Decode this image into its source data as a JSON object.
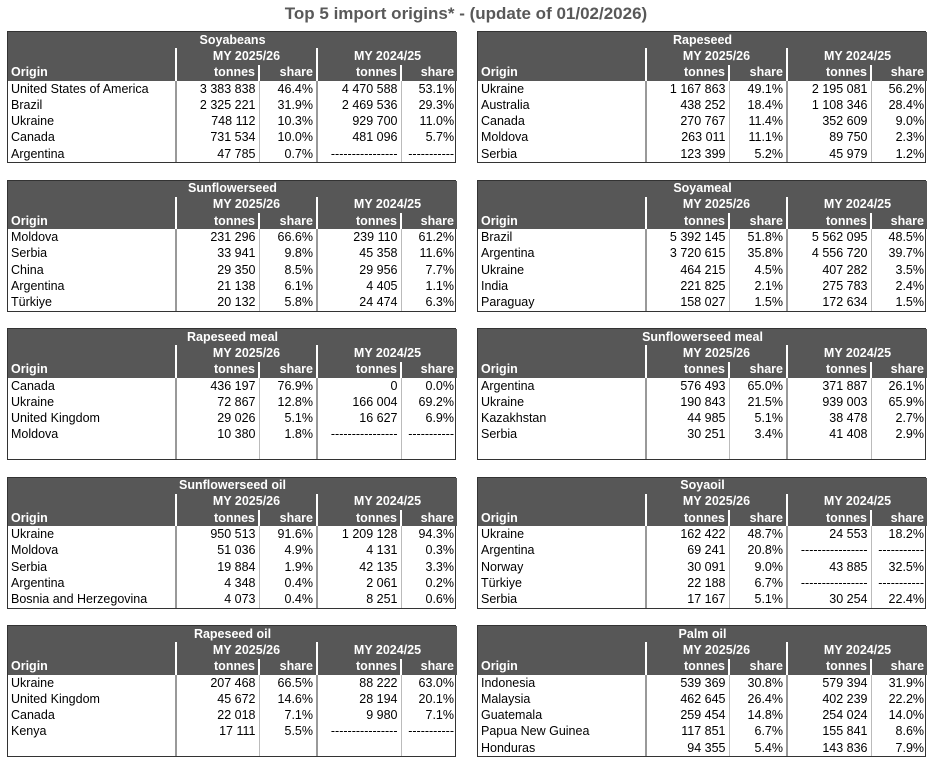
{
  "title": "Top 5 import origins* - (update of 01/02/2026)",
  "tables": [
    {
      "title": "Soyabeans",
      "periods": [
        "MY 2025/26",
        "MY 2024/25"
      ],
      "columns": [
        "Origin",
        "tonnes",
        "share",
        "tonnes",
        "share"
      ],
      "rows": [
        [
          "United States of America",
          "3 383 838",
          "46.4%",
          "4 470 588",
          "53.1%"
        ],
        [
          "Brazil",
          "2 325 221",
          "31.9%",
          "2 469 536",
          "29.3%"
        ],
        [
          "Ukraine",
          "748 112",
          "10.3%",
          "929 700",
          "11.0%"
        ],
        [
          "Canada",
          "731 534",
          "10.0%",
          "481 096",
          "5.7%"
        ],
        [
          "Argentina",
          "47 785",
          "0.7%",
          "----------------",
          "-----------"
        ]
      ]
    },
    {
      "title": "Rapeseed",
      "periods": [
        "MY 2025/26",
        "MY 2024/25"
      ],
      "columns": [
        "Origin",
        "tonnes",
        "share",
        "tonnes",
        "share"
      ],
      "rows": [
        [
          "Ukraine",
          "1 167 863",
          "49.1%",
          "2 195 081",
          "56.2%"
        ],
        [
          "Australia",
          "438 252",
          "18.4%",
          "1 108 346",
          "28.4%"
        ],
        [
          "Canada",
          "270 767",
          "11.4%",
          "352 609",
          "9.0%"
        ],
        [
          "Moldova",
          "263 011",
          "11.1%",
          "89 750",
          "2.3%"
        ],
        [
          "Serbia",
          "123 399",
          "5.2%",
          "45 979",
          "1.2%"
        ]
      ]
    },
    {
      "title": "Sunflowerseed",
      "periods": [
        "MY 2025/26",
        "MY 2024/25"
      ],
      "columns": [
        "Origin",
        "tonnes",
        "share",
        "tonnes",
        "share"
      ],
      "rows": [
        [
          "Moldova",
          "231 296",
          "66.6%",
          "239 110",
          "61.2%"
        ],
        [
          "Serbia",
          "33 941",
          "9.8%",
          "45 358",
          "11.6%"
        ],
        [
          "China",
          "29 350",
          "8.5%",
          "29 956",
          "7.7%"
        ],
        [
          "Argentina",
          "21 138",
          "6.1%",
          "4 405",
          "1.1%"
        ],
        [
          "Türkiye",
          "20 132",
          "5.8%",
          "24 474",
          "6.3%"
        ]
      ]
    },
    {
      "title": "Soyameal",
      "periods": [
        "MY 2025/26",
        "MY 2024/25"
      ],
      "columns": [
        "Origin",
        "tonnes",
        "share",
        "tonnes",
        "share"
      ],
      "rows": [
        [
          "Brazil",
          "5 392 145",
          "51.8%",
          "5 562 095",
          "48.5%"
        ],
        [
          "Argentina",
          "3 720 615",
          "35.8%",
          "4 556 720",
          "39.7%"
        ],
        [
          "Ukraine",
          "464 215",
          "4.5%",
          "407 282",
          "3.5%"
        ],
        [
          "India",
          "221 825",
          "2.1%",
          "275 783",
          "2.4%"
        ],
        [
          "Paraguay",
          "158 027",
          "1.5%",
          "172 634",
          "1.5%"
        ]
      ]
    },
    {
      "title": "Rapeseed meal",
      "periods": [
        "MY 2025/26",
        "MY 2024/25"
      ],
      "columns": [
        "Origin",
        "tonnes",
        "share",
        "tonnes",
        "share"
      ],
      "rows": [
        [
          "Canada",
          "436 197",
          "76.9%",
          "0",
          "0.0%"
        ],
        [
          "Ukraine",
          "72 867",
          "12.8%",
          "166 004",
          "69.2%"
        ],
        [
          "United Kingdom",
          "29 026",
          "5.1%",
          "16 627",
          "6.9%"
        ],
        [
          "Moldova",
          "10 380",
          "1.8%",
          "----------------",
          "-----------"
        ]
      ]
    },
    {
      "title": "Sunflowerseed meal",
      "periods": [
        "MY 2025/26",
        "MY 2024/25"
      ],
      "columns": [
        "Origin",
        "tonnes",
        "share",
        "tonnes",
        "share"
      ],
      "rows": [
        [
          "Argentina",
          "576 493",
          "65.0%",
          "371 887",
          "26.1%"
        ],
        [
          "Ukraine",
          "190 843",
          "21.5%",
          "939 003",
          "65.9%"
        ],
        [
          "Kazakhstan",
          "44 985",
          "5.1%",
          "38 478",
          "2.7%"
        ],
        [
          "Serbia",
          "30 251",
          "3.4%",
          "41 408",
          "2.9%"
        ]
      ]
    },
    {
      "title": "Sunflowerseed oil",
      "periods": [
        "MY 2025/26",
        "MY 2024/25"
      ],
      "columns": [
        "Origin",
        "tonnes",
        "share",
        "tonnes",
        "share"
      ],
      "rows": [
        [
          "Ukraine",
          "950 513",
          "91.6%",
          "1 209 128",
          "94.3%"
        ],
        [
          "Moldova",
          "51 036",
          "4.9%",
          "4 131",
          "0.3%"
        ],
        [
          "Serbia",
          "19 884",
          "1.9%",
          "42 135",
          "3.3%"
        ],
        [
          "Argentina",
          "4 348",
          "0.4%",
          "2 061",
          "0.2%"
        ],
        [
          "Bosnia and Herzegovina",
          "4 073",
          "0.4%",
          "8 251",
          "0.6%"
        ]
      ]
    },
    {
      "title": "Soyaoil",
      "periods": [
        "MY 2025/26",
        "MY 2024/25"
      ],
      "columns": [
        "Origin",
        "tonnes",
        "share",
        "tonnes",
        "share"
      ],
      "rows": [
        [
          "Ukraine",
          "162 422",
          "48.7%",
          "24 553",
          "18.2%"
        ],
        [
          "Argentina",
          "69 241",
          "20.8%",
          "----------------",
          "-----------"
        ],
        [
          "Norway",
          "30 091",
          "9.0%",
          "43 885",
          "32.5%"
        ],
        [
          "Türkiye",
          "22 188",
          "6.7%",
          "----------------",
          "-----------"
        ],
        [
          "Serbia",
          "17 167",
          "5.1%",
          "30 254",
          "22.4%"
        ]
      ]
    },
    {
      "title": "Rapeseed oil",
      "periods": [
        "MY 2025/26",
        "MY 2024/25"
      ],
      "columns": [
        "Origin",
        "tonnes",
        "share",
        "tonnes",
        "share"
      ],
      "rows": [
        [
          "Ukraine",
          "207 468",
          "66.5%",
          "88 222",
          "63.0%"
        ],
        [
          "United Kingdom",
          "45 672",
          "14.6%",
          "28 194",
          "20.1%"
        ],
        [
          "Canada",
          "22 018",
          "7.1%",
          "9 980",
          "7.1%"
        ],
        [
          "Kenya",
          "17 111",
          "5.5%",
          "----------------",
          "-----------"
        ]
      ]
    },
    {
      "title": "Palm oil",
      "periods": [
        "MY 2025/26",
        "MY 2024/25"
      ],
      "columns": [
        "Origin",
        "tonnes",
        "share",
        "tonnes",
        "share"
      ],
      "rows": [
        [
          "Indonesia",
          "539 369",
          "30.8%",
          "579 394",
          "31.9%"
        ],
        [
          "Malaysia",
          "462 645",
          "26.4%",
          "402 239",
          "22.2%"
        ],
        [
          "Guatemala",
          "259 454",
          "14.8%",
          "254 024",
          "14.0%"
        ],
        [
          "Papua New Guinea",
          "117 851",
          "6.7%",
          "155 841",
          "8.6%"
        ],
        [
          "Honduras",
          "94 355",
          "5.4%",
          "143 836",
          "7.9%"
        ]
      ]
    }
  ]
}
